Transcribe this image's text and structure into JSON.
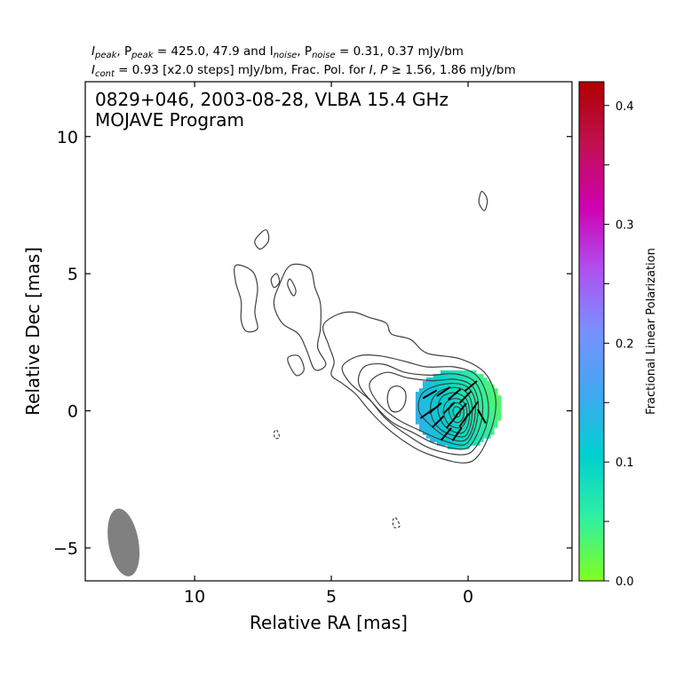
{
  "chart_data": {
    "type": "contour",
    "header": {
      "line1": {
        "a": "I",
        "a_sub": "peak",
        "b": ", P",
        "b_sub": "peak",
        "c": " = 425.0, 47.9 and I",
        "c_sub": "noise",
        "d": ", P",
        "d_sub": "noise",
        "e": " = 0.31, 0.37 mJy/bm"
      },
      "line2": {
        "a": "I",
        "a_sub": "cont",
        "b": " = 0.93 [x2.0 steps] mJy/bm, Frac. Pol. for ",
        "c": "I",
        "d": ", ",
        "e": "P",
        "f": " ≥  1.56, 1.86 mJy/bm"
      }
    },
    "title": "0829+046, 2003-08-28, VLBA 15.4 GHz",
    "subtitle": "MOJAVE Program",
    "xlabel": "Relative RA [mas]",
    "ylabel": "Relative Dec [mas]",
    "xlim": [
      14,
      -3.8
    ],
    "ylim": [
      -6.2,
      12
    ],
    "x_ticks": [
      10,
      5,
      0
    ],
    "x_tick_labels": [
      "10",
      "5",
      "0"
    ],
    "y_ticks": [
      -5,
      0,
      5,
      10
    ],
    "y_tick_labels": [
      "−5",
      "0",
      "5",
      "10"
    ],
    "colorbar": {
      "label": "Fractional Linear Polarization",
      "range": [
        0.0,
        0.42
      ],
      "ticks": [
        0.0,
        0.1,
        0.2,
        0.3,
        0.4
      ],
      "tick_labels": [
        "0.0",
        "0.1",
        "0.2",
        "0.3",
        "0.4"
      ],
      "minor_ticks": [
        0.05,
        0.15,
        0.25,
        0.35
      ],
      "colors": [
        "#80ff20",
        "#30f0a0",
        "#00d0d0",
        "#40a8f0",
        "#7890ff",
        "#b050f0",
        "#d000b0",
        "#c01050",
        "#b00000"
      ]
    },
    "contour_color": "#404040",
    "beam": {
      "x": 12.6,
      "y": -4.8,
      "major_mas": 1.25,
      "minor_mas": 0.55,
      "pa_deg": -10,
      "color": "#808080"
    },
    "core": {
      "x": 0.1,
      "y": 0.1
    },
    "polarization_patch": {
      "x": 0.45,
      "y": 0.15,
      "rx_mas": 1.6,
      "ry_mas": 1.45
    },
    "evpa_ticks": [
      {
        "x": 1.4,
        "y": 0.6,
        "angle": 30
      },
      {
        "x": 0.9,
        "y": 0.7,
        "angle": 35
      },
      {
        "x": 0.5,
        "y": 0.6,
        "angle": 40
      },
      {
        "x": 0.1,
        "y": 0.5,
        "angle": 45
      },
      {
        "x": 1.2,
        "y": 0.1,
        "angle": 40
      },
      {
        "x": 0.7,
        "y": 0.1,
        "angle": 45
      },
      {
        "x": 0.25,
        "y": 0.05,
        "angle": 50
      },
      {
        "x": -0.2,
        "y": 0.1,
        "angle": 55
      },
      {
        "x": 1.1,
        "y": -0.4,
        "angle": 45
      },
      {
        "x": 0.6,
        "y": -0.4,
        "angle": 50
      },
      {
        "x": 0.15,
        "y": -0.35,
        "angle": 55
      },
      {
        "x": 0.8,
        "y": -0.85,
        "angle": 50
      },
      {
        "x": 0.4,
        "y": -0.85,
        "angle": 55
      },
      {
        "x": -0.5,
        "y": -0.2,
        "angle": -60
      },
      {
        "x": 1.5,
        "y": -0.1,
        "angle": 35
      },
      {
        "x": -0.1,
        "y": 0.9,
        "angle": 40
      }
    ],
    "contours": [
      {
        "level": 1,
        "closed": true,
        "points": [
          [
            0.2,
            -1.9
          ],
          [
            -0.4,
            -1.6
          ],
          [
            -0.9,
            -0.5
          ],
          [
            -1.0,
            0.5
          ],
          [
            -0.6,
            1.4
          ],
          [
            0.3,
            1.9
          ],
          [
            1.5,
            2.1
          ],
          [
            2.1,
            2.6
          ],
          [
            2.8,
            2.8
          ],
          [
            3.0,
            3.2
          ],
          [
            3.6,
            3.4
          ],
          [
            4.2,
            3.6
          ],
          [
            4.8,
            3.5
          ],
          [
            5.3,
            3.1
          ],
          [
            5.1,
            2.4
          ],
          [
            4.9,
            1.8
          ],
          [
            5.0,
            1.3
          ],
          [
            4.6,
            1.0
          ],
          [
            4.1,
            0.6
          ],
          [
            3.6,
            0.0
          ],
          [
            3.0,
            -0.6
          ],
          [
            2.2,
            -1.2
          ],
          [
            1.4,
            -1.6
          ]
        ]
      },
      {
        "level": 2,
        "closed": true,
        "points": [
          [
            0.2,
            -1.6
          ],
          [
            -0.3,
            -1.3
          ],
          [
            -0.7,
            -0.4
          ],
          [
            -0.7,
            0.5
          ],
          [
            -0.3,
            1.3
          ],
          [
            0.5,
            1.6
          ],
          [
            1.5,
            1.6
          ],
          [
            2.3,
            1.8
          ],
          [
            3.2,
            2.0
          ],
          [
            4.0,
            2.0
          ],
          [
            4.6,
            1.6
          ],
          [
            4.3,
            1.0
          ],
          [
            3.6,
            0.4
          ],
          [
            3.0,
            -0.3
          ],
          [
            2.2,
            -0.9
          ],
          [
            1.3,
            -1.4
          ]
        ]
      },
      {
        "level": 3,
        "closed": true,
        "points": [
          [
            0.2,
            -1.4
          ],
          [
            -0.2,
            -1.1
          ],
          [
            -0.5,
            -0.3
          ],
          [
            -0.5,
            0.5
          ],
          [
            -0.2,
            1.1
          ],
          [
            0.5,
            1.35
          ],
          [
            1.4,
            1.3
          ],
          [
            2.3,
            1.4
          ],
          [
            3.1,
            1.7
          ],
          [
            3.8,
            1.6
          ],
          [
            4.0,
            1.0
          ],
          [
            3.5,
            0.3
          ],
          [
            2.8,
            -0.4
          ],
          [
            2.0,
            -0.8
          ],
          [
            1.2,
            -1.2
          ]
        ]
      },
      {
        "level": 4,
        "closed": true,
        "points": [
          [
            0.2,
            -1.25
          ],
          [
            -0.15,
            -0.9
          ],
          [
            -0.35,
            -0.2
          ],
          [
            -0.35,
            0.45
          ],
          [
            -0.1,
            0.95
          ],
          [
            0.5,
            1.15
          ],
          [
            1.3,
            1.1
          ],
          [
            2.2,
            1.2
          ],
          [
            3.0,
            1.4
          ],
          [
            3.6,
            1.0
          ],
          [
            3.3,
            0.3
          ],
          [
            2.6,
            -0.3
          ],
          [
            1.8,
            -0.7
          ],
          [
            1.0,
            -1.05
          ]
        ]
      },
      {
        "level": 5,
        "closed": true,
        "points": [
          [
            0.2,
            -1.1
          ],
          [
            -0.1,
            -0.8
          ],
          [
            -0.25,
            -0.2
          ],
          [
            -0.25,
            0.4
          ],
          [
            0.0,
            0.85
          ],
          [
            0.5,
            1.0
          ],
          [
            1.2,
            0.9
          ],
          [
            1.7,
            0.6
          ],
          [
            1.8,
            0.0
          ],
          [
            1.4,
            -0.5
          ],
          [
            0.8,
            -0.95
          ]
        ]
      },
      {
        "level": 6,
        "closed": true,
        "points": [
          [
            0.2,
            -0.95
          ],
          [
            -0.05,
            -0.65
          ],
          [
            -0.15,
            -0.1
          ],
          [
            -0.1,
            0.4
          ],
          [
            0.15,
            0.75
          ],
          [
            0.55,
            0.85
          ],
          [
            1.05,
            0.7
          ],
          [
            1.35,
            0.3
          ],
          [
            1.3,
            -0.3
          ],
          [
            0.9,
            -0.75
          ]
        ]
      },
      {
        "level": 7,
        "closed": true,
        "points": [
          [
            0.2,
            -0.8
          ],
          [
            0.0,
            -0.5
          ],
          [
            -0.05,
            0.0
          ],
          [
            0.05,
            0.4
          ],
          [
            0.3,
            0.6
          ],
          [
            0.65,
            0.65
          ],
          [
            1.0,
            0.45
          ],
          [
            1.1,
            0.0
          ],
          [
            0.9,
            -0.5
          ],
          [
            0.55,
            -0.75
          ]
        ]
      },
      {
        "level": 8,
        "closed": true,
        "points": [
          [
            0.25,
            -0.6
          ],
          [
            0.08,
            -0.35
          ],
          [
            0.05,
            0.05
          ],
          [
            0.2,
            0.35
          ],
          [
            0.5,
            0.45
          ],
          [
            0.8,
            0.3
          ],
          [
            0.9,
            -0.05
          ],
          [
            0.75,
            -0.45
          ],
          [
            0.5,
            -0.6
          ]
        ]
      },
      {
        "level": 9,
        "closed": true,
        "points": [
          [
            0.3,
            -0.4
          ],
          [
            0.17,
            -0.2
          ],
          [
            0.18,
            0.1
          ],
          [
            0.35,
            0.28
          ],
          [
            0.6,
            0.25
          ],
          [
            0.7,
            0.0
          ],
          [
            0.6,
            -0.3
          ],
          [
            0.45,
            -0.42
          ]
        ]
      },
      {
        "level": 10,
        "closed": true,
        "points": [
          [
            0.35,
            -0.22
          ],
          [
            0.27,
            -0.05
          ],
          [
            0.33,
            0.12
          ],
          [
            0.48,
            0.14
          ],
          [
            0.55,
            0.0
          ],
          [
            0.5,
            -0.18
          ]
        ]
      },
      {
        "level": 4,
        "closed": true,
        "points": [
          [
            2.55,
            0.9
          ],
          [
            2.85,
            0.8
          ],
          [
            2.95,
            0.4
          ],
          [
            2.8,
            0.0
          ],
          [
            2.5,
            0.0
          ],
          [
            2.3,
            0.3
          ],
          [
            2.3,
            0.7
          ]
        ]
      },
      {
        "level": 1,
        "closed": true,
        "points": [
          [
            7.4,
            6.6
          ],
          [
            7.8,
            6.2
          ],
          [
            7.6,
            5.9
          ],
          [
            7.3,
            6.2
          ]
        ]
      },
      {
        "level": 1,
        "closed": true,
        "points": [
          [
            8.5,
            5.3
          ],
          [
            7.9,
            5.1
          ],
          [
            7.7,
            4.5
          ],
          [
            7.8,
            3.6
          ],
          [
            7.7,
            3.0
          ],
          [
            8.1,
            2.9
          ],
          [
            8.3,
            3.3
          ],
          [
            8.3,
            4.0
          ],
          [
            8.5,
            4.7
          ]
        ]
      },
      {
        "level": 1,
        "closed": true,
        "points": [
          [
            7.0,
            5.0
          ],
          [
            6.9,
            4.7
          ],
          [
            7.1,
            4.5
          ],
          [
            7.2,
            4.8
          ]
        ]
      },
      {
        "level": 1,
        "closed": true,
        "points": [
          [
            6.5,
            5.3
          ],
          [
            5.8,
            5.2
          ],
          [
            5.6,
            4.5
          ],
          [
            5.4,
            3.9
          ],
          [
            5.4,
            3.0
          ],
          [
            5.5,
            2.3
          ],
          [
            5.2,
            1.7
          ],
          [
            5.6,
            1.5
          ],
          [
            5.9,
            2.2
          ],
          [
            6.2,
            2.8
          ],
          [
            6.8,
            3.2
          ],
          [
            7.1,
            3.9
          ],
          [
            6.9,
            4.6
          ]
        ]
      },
      {
        "level": 1,
        "closed": true,
        "points": [
          [
            6.6,
            4.6
          ],
          [
            6.4,
            4.2
          ],
          [
            6.3,
            4.4
          ],
          [
            6.5,
            4.8
          ]
        ]
      },
      {
        "level": 1,
        "closed": true,
        "points": [
          [
            6.6,
            1.9
          ],
          [
            6.3,
            1.3
          ],
          [
            6.0,
            1.5
          ],
          [
            6.2,
            2.0
          ]
        ]
      },
      {
        "level": 1,
        "closed": true,
        "points": [
          [
            -0.5,
            8.0
          ],
          [
            -0.7,
            7.7
          ],
          [
            -0.6,
            7.3
          ],
          [
            -0.4,
            7.6
          ]
        ]
      },
      {
        "level": 1,
        "closed": true,
        "dashed": true,
        "points": [
          [
            7.0,
            -0.7
          ],
          [
            6.9,
            -0.95
          ],
          [
            7.05,
            -1.0
          ],
          [
            7.1,
            -0.8
          ]
        ]
      },
      {
        "level": 1,
        "closed": true,
        "dashed": true,
        "points": [
          [
            2.65,
            -3.9
          ],
          [
            2.5,
            -4.2
          ],
          [
            2.7,
            -4.25
          ],
          [
            2.75,
            -4.0
          ]
        ]
      }
    ]
  }
}
